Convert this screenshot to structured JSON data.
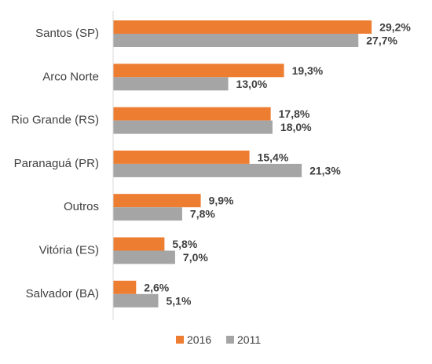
{
  "chart_data": {
    "type": "bar",
    "orientation": "horizontal",
    "categories": [
      "Santos (SP)",
      "Arco Norte",
      "Rio Grande (RS)",
      "Paranaguá (PR)",
      "Outros",
      "Vitória (ES)",
      "Salvador (BA)"
    ],
    "series": [
      {
        "name": "2016",
        "color": "#ED7D31",
        "values": [
          29.2,
          19.3,
          17.8,
          15.4,
          9.9,
          5.8,
          2.6
        ],
        "labels": [
          "29,2%",
          "19,3%",
          "17,8%",
          "15,4%",
          "9,9%",
          "5,8%",
          "2,6%"
        ]
      },
      {
        "name": "2011",
        "color": "#A5A5A5",
        "values": [
          27.7,
          13.0,
          18.0,
          21.3,
          7.8,
          7.0,
          5.1
        ],
        "labels": [
          "27,7%",
          "13,0%",
          "18,0%",
          "21,3%",
          "7,8%",
          "7,0%",
          "5,1%"
        ]
      }
    ],
    "xlim": [
      0,
      33
    ],
    "grid": false,
    "legend": "bottom-center"
  }
}
